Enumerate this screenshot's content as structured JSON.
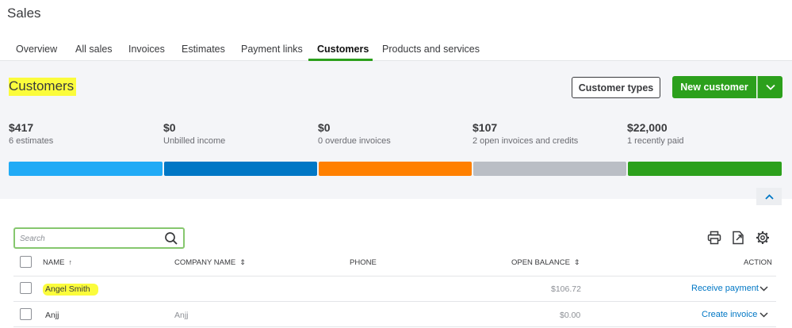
{
  "page": {
    "title": "Sales"
  },
  "tabs": [
    {
      "label": "Overview"
    },
    {
      "label": "All sales"
    },
    {
      "label": "Invoices"
    },
    {
      "label": "Estimates"
    },
    {
      "label": "Payment links"
    },
    {
      "label": "Customers",
      "active": true
    },
    {
      "label": "Products and services"
    }
  ],
  "hero": {
    "title": "Customers",
    "customer_types_label": "Customer types",
    "new_customer_label": "New customer",
    "stats": [
      {
        "amount": "$417",
        "label": "6 estimates",
        "color": "#21abf6"
      },
      {
        "amount": "$0",
        "label": "Unbilled income",
        "color": "#0077c5"
      },
      {
        "amount": "$0",
        "label": "0 overdue invoices",
        "color": "#ff8000"
      },
      {
        "amount": "$107",
        "label": "2 open invoices and credits",
        "color": "#babec5"
      },
      {
        "amount": "$22,000",
        "label": "1 recently paid",
        "color": "#2ca01c"
      }
    ]
  },
  "search": {
    "placeholder": "Search",
    "value": ""
  },
  "toolbar": {
    "icons": [
      "print-icon",
      "export-icon",
      "settings-gear-icon"
    ]
  },
  "table": {
    "columns": {
      "name": "NAME",
      "company": "COMPANY NAME",
      "phone": "PHONE",
      "balance": "OPEN BALANCE",
      "action": "ACTION"
    },
    "rows": [
      {
        "name": "Angel Smith",
        "company": "",
        "phone": "",
        "balance": "$106.72",
        "action": "Receive payment"
      },
      {
        "name": "Anjj",
        "company": "Anjj",
        "phone": "",
        "balance": "$0.00",
        "action": "Create invoice"
      }
    ]
  },
  "colors": {
    "brand_green": "#2ca01c",
    "link_blue": "#0077c5",
    "highlight": "#fbfc3c"
  }
}
